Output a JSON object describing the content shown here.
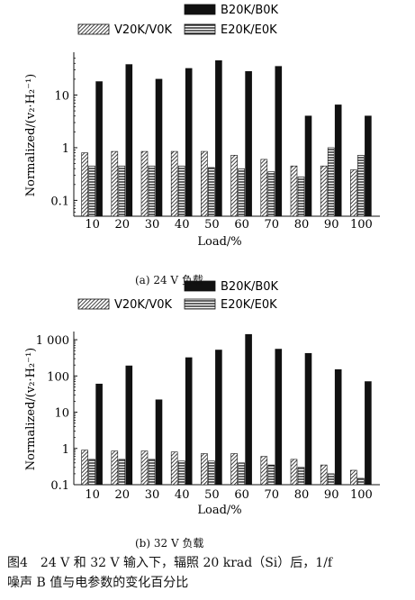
{
  "colors": {
    "ink": "#111111",
    "background": "#ffffff"
  },
  "figure": {
    "number": "图4",
    "caption_line1": "24 V 和 32 V 输入下，辐照 20 krad（Si）后，1/f",
    "caption_line2": "噪声 B 值与电参数的变化百分比"
  },
  "chart_data": [
    {
      "type": "bar",
      "subcaption": "(a) 24 V 负载",
      "xlabel": "Load/%",
      "ylabel": "Normalized/(v₂·H₂⁻¹)",
      "yscale": "log",
      "ylim": [
        0.05,
        60
      ],
      "ytick_values": [
        0.1,
        1,
        10
      ],
      "ytick_labels": [
        "0.1",
        "1",
        "10"
      ],
      "legend_position": "top",
      "categories": [
        "10",
        "20",
        "30",
        "40",
        "50",
        "60",
        "70",
        "80",
        "90",
        "100"
      ],
      "series": [
        {
          "name": "V20K/V0K",
          "pattern": "diagonal-hatch",
          "values": [
            0.8,
            0.85,
            0.85,
            0.85,
            0.85,
            0.72,
            0.6,
            0.45,
            0.45,
            0.38
          ]
        },
        {
          "name": "E20K/E0K",
          "pattern": "horizontal-lines",
          "values": [
            0.45,
            0.45,
            0.45,
            0.45,
            0.42,
            0.4,
            0.35,
            0.28,
            1.0,
            0.72
          ]
        },
        {
          "name": "B20K/B0K",
          "pattern": "solid",
          "values": [
            18,
            38,
            20,
            32,
            45,
            28,
            35,
            4,
            6.5,
            4
          ]
        }
      ]
    },
    {
      "type": "bar",
      "subcaption": "(b) 32 V 负载",
      "xlabel": "Load/%",
      "ylabel": "Normalized/(v₂·H₂⁻¹)",
      "yscale": "log",
      "ylim": [
        0.1,
        1500
      ],
      "ytick_values": [
        0.1,
        1,
        10,
        100,
        1000
      ],
      "ytick_labels": [
        "0.1",
        "1",
        "10",
        "100",
        "1 000"
      ],
      "legend_position": "top",
      "categories": [
        "10",
        "20",
        "30",
        "40",
        "50",
        "60",
        "70",
        "80",
        "90",
        "100"
      ],
      "series": [
        {
          "name": "V20K/V0K",
          "pattern": "diagonal-hatch",
          "values": [
            0.9,
            0.85,
            0.85,
            0.8,
            0.72,
            0.72,
            0.6,
            0.5,
            0.35,
            0.25
          ]
        },
        {
          "name": "E20K/E0K",
          "pattern": "horizontal-lines",
          "values": [
            0.5,
            0.5,
            0.5,
            0.45,
            0.45,
            0.4,
            0.35,
            0.3,
            0.2,
            0.15
          ]
        },
        {
          "name": "B20K/B0K",
          "pattern": "solid",
          "values": [
            60,
            190,
            22,
            320,
            520,
            1400,
            550,
            420,
            150,
            70
          ]
        }
      ]
    }
  ]
}
